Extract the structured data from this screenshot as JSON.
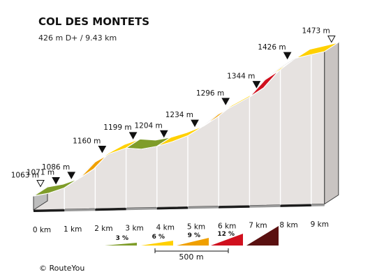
{
  "header": {
    "title": "COL DES MONTETS",
    "subtitle": "426 m D+ / 9.43 km"
  },
  "credit": "© RouteYou",
  "colors": {
    "0-3": "#7f9d2a",
    "3-6": "#ffd000",
    "6-9": "#f0a000",
    "9-12": "#d0101e",
    "12+": "#5a1010"
  },
  "legend": {
    "labels": [
      "3 %",
      "6 %",
      "9 %",
      "12 %"
    ],
    "scale_label": "500 m"
  },
  "chart_data": {
    "type": "area",
    "title": "COL DES MONTETS",
    "subtitle": "426 m D+ / 9.43 km",
    "x_unit": "km",
    "y_unit": "m",
    "xlim": [
      0,
      9.43
    ],
    "km_ticks": [
      "0 km",
      "1 km",
      "2 km",
      "3 km",
      "4 km",
      "5 km",
      "6 km",
      "7 km",
      "8 km",
      "9 km"
    ],
    "profile": [
      {
        "km": 0,
        "elev": 1063
      },
      {
        "km": 0.5,
        "elev": 1071
      },
      {
        "km": 1.0,
        "elev": 1086
      },
      {
        "km": 1.5,
        "elev": 1114
      },
      {
        "km": 2.0,
        "elev": 1160
      },
      {
        "km": 2.5,
        "elev": 1184
      },
      {
        "km": 3.0,
        "elev": 1199
      },
      {
        "km": 3.5,
        "elev": 1196
      },
      {
        "km": 4.0,
        "elev": 1204
      },
      {
        "km": 4.5,
        "elev": 1217
      },
      {
        "km": 5.0,
        "elev": 1234
      },
      {
        "km": 5.5,
        "elev": 1261
      },
      {
        "km": 6.0,
        "elev": 1296
      },
      {
        "km": 6.5,
        "elev": 1320
      },
      {
        "km": 7.0,
        "elev": 1344
      },
      {
        "km": 7.5,
        "elev": 1393
      },
      {
        "km": 8.0,
        "elev": 1426
      },
      {
        "km": 8.5,
        "elev": 1454
      },
      {
        "km": 9.43,
        "elev": 1473
      }
    ],
    "segments": [
      {
        "from": 0,
        "to": 1,
        "class": "0-3"
      },
      {
        "from": 1,
        "to": 1.5,
        "class": "3-6"
      },
      {
        "from": 1.5,
        "to": 2,
        "class": "6-9"
      },
      {
        "from": 2,
        "to": 3,
        "class": "3-6"
      },
      {
        "from": 3,
        "to": 4,
        "class": "0-3"
      },
      {
        "from": 4,
        "to": 5.5,
        "class": "3-6"
      },
      {
        "from": 5.5,
        "to": 6,
        "class": "6-9"
      },
      {
        "from": 6,
        "to": 7,
        "class": "3-6"
      },
      {
        "from": 7,
        "to": 7.5,
        "class": "9-12"
      },
      {
        "from": 7.5,
        "to": 9.43,
        "class": "3-6"
      }
    ],
    "markers": [
      {
        "km": 0,
        "label": "1063 m",
        "marker": "open"
      },
      {
        "km": 0.5,
        "label": "1071 m",
        "marker": "filled"
      },
      {
        "km": 1.0,
        "label": "1086 m",
        "marker": "filled"
      },
      {
        "km": 2.0,
        "label": "1160 m",
        "marker": "filled"
      },
      {
        "km": 3.0,
        "label": "1199 m",
        "marker": "filled"
      },
      {
        "km": 4.0,
        "label": "1204 m",
        "marker": "filled"
      },
      {
        "km": 5.0,
        "label": "1234 m",
        "marker": "filled"
      },
      {
        "km": 6.0,
        "label": "1296 m",
        "marker": "filled"
      },
      {
        "km": 7.0,
        "label": "1344 m",
        "marker": "filled"
      },
      {
        "km": 8.0,
        "label": "1426 m",
        "marker": "filled"
      },
      {
        "km": 9.43,
        "label": "1473 m",
        "marker": "open"
      }
    ]
  }
}
